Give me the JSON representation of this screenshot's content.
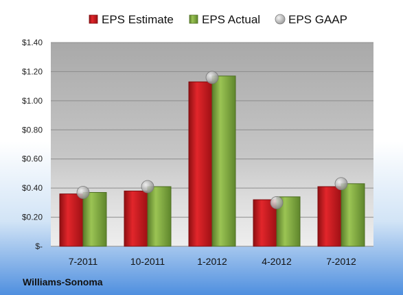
{
  "chart_data": {
    "type": "bar",
    "categories": [
      "7-2011",
      "10-2011",
      "1-2012",
      "4-2012",
      "7-2012"
    ],
    "series": [
      {
        "name": "EPS Estimate",
        "values": [
          0.36,
          0.38,
          1.13,
          0.32,
          0.41
        ],
        "color": "#c4161c",
        "marker": "bar"
      },
      {
        "name": "EPS Actual",
        "values": [
          0.37,
          0.41,
          1.17,
          0.34,
          0.43
        ],
        "color": "#78a33a",
        "marker": "bar"
      },
      {
        "name": "EPS GAAP",
        "values": [
          0.37,
          0.41,
          1.16,
          0.3,
          0.43
        ],
        "color": "#a6a6a6",
        "marker": "circle"
      }
    ],
    "yticks": [
      "$-",
      "$0.20",
      "$0.40",
      "$0.60",
      "$0.80",
      "$1.00",
      "$1.20",
      "$1.40"
    ],
    "ylim": [
      0,
      1.4
    ],
    "grid": true,
    "legend": "top",
    "company": "Williams-Sonoma"
  }
}
